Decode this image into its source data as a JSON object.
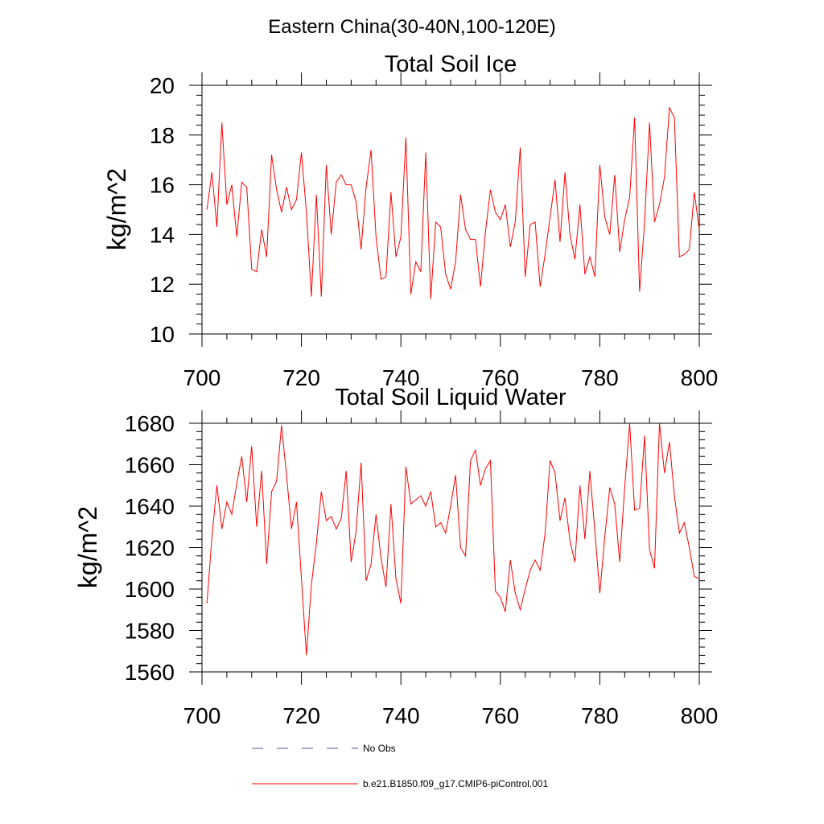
{
  "figure_title": "Eastern China(30-40N,100-120E)",
  "legend": [
    {
      "label": "No Obs",
      "style": "dashed",
      "color": "#55557a"
    },
    {
      "label": "b.e21.B1850.f09_g17.CMIP6-piControl.001",
      "style": "solid",
      "color": "#ff0000"
    }
  ],
  "chart_data": [
    {
      "type": "line",
      "title": "Total Soil Ice",
      "xlabel": "",
      "ylabel": "kg/m^2",
      "xlim": [
        700,
        800
      ],
      "ylim": [
        10,
        20
      ],
      "xticks": [
        700,
        720,
        740,
        760,
        780,
        800
      ],
      "xtick_labels": [
        "700",
        "720",
        "740",
        "760",
        "780",
        "800"
      ],
      "yticks": [
        10,
        12,
        14,
        16,
        18,
        20
      ],
      "ytick_labels": [
        "10",
        "12",
        "14",
        "16",
        "18",
        "20"
      ],
      "series": [
        {
          "name": "b.e21.B1850.f09_g17.CMIP6-piControl.001",
          "color": "#ff0000",
          "x_start": 701,
          "values": [
            15.0,
            16.5,
            14.3,
            18.5,
            15.2,
            16.0,
            13.9,
            16.1,
            15.9,
            12.6,
            12.5,
            14.2,
            13.1,
            17.2,
            15.8,
            14.9,
            15.9,
            15.0,
            15.4,
            17.3,
            14.9,
            11.5,
            15.6,
            11.5,
            16.8,
            14.0,
            16.1,
            16.4,
            16.0,
            16.0,
            15.3,
            13.4,
            15.9,
            17.4,
            13.9,
            12.2,
            12.3,
            15.7,
            13.1,
            13.9,
            17.9,
            11.6,
            12.9,
            12.5,
            17.3,
            11.4,
            14.5,
            14.3,
            12.4,
            11.8,
            12.9,
            15.6,
            14.2,
            13.8,
            13.8,
            11.9,
            14.1,
            15.8,
            14.9,
            14.6,
            15.2,
            13.5,
            14.5,
            17.5,
            12.3,
            14.4,
            14.5,
            11.9,
            13.2,
            14.7,
            16.2,
            13.7,
            16.5,
            14.0,
            13.0,
            15.2,
            12.4,
            13.1,
            12.3,
            16.8,
            14.7,
            14.0,
            16.4,
            13.3,
            14.6,
            15.5,
            18.7,
            11.7,
            14.5,
            18.5,
            14.5,
            15.2,
            16.3,
            19.1,
            18.7,
            13.1,
            13.2,
            13.4,
            15.7,
            14.2
          ]
        }
      ]
    },
    {
      "type": "line",
      "title": "Total Soil Liquid Water",
      "xlabel": "",
      "ylabel": "kg/m^2",
      "xlim": [
        700,
        800
      ],
      "ylim": [
        1560,
        1680
      ],
      "xticks": [
        700,
        720,
        740,
        760,
        780,
        800
      ],
      "xtick_labels": [
        "700",
        "720",
        "740",
        "760",
        "780",
        "800"
      ],
      "yticks": [
        1560,
        1580,
        1600,
        1620,
        1640,
        1660,
        1680
      ],
      "ytick_labels": [
        "1560",
        "1580",
        "1600",
        "1620",
        "1640",
        "1660",
        "1680"
      ],
      "series": [
        {
          "name": "b.e21.B1850.f09_g17.CMIP6-piControl.001",
          "color": "#ff0000",
          "x_start": 701,
          "values": [
            1593,
            1625,
            1650,
            1629,
            1642,
            1636,
            1651,
            1664,
            1642,
            1669,
            1630,
            1657,
            1612,
            1647,
            1652,
            1679,
            1655,
            1629,
            1642,
            1605,
            1568,
            1602,
            1622,
            1647,
            1633,
            1635,
            1629,
            1634,
            1657,
            1613,
            1628,
            1661,
            1604,
            1612,
            1636,
            1615,
            1601,
            1641,
            1605,
            1593,
            1659,
            1641,
            1643,
            1645,
            1640,
            1647,
            1630,
            1632,
            1627,
            1640,
            1655,
            1620,
            1616,
            1662,
            1667,
            1650,
            1658,
            1662,
            1599,
            1596,
            1589,
            1614,
            1598,
            1590,
            1600,
            1609,
            1614,
            1609,
            1627,
            1662,
            1656,
            1633,
            1644,
            1623,
            1613,
            1650,
            1624,
            1657,
            1628,
            1598,
            1625,
            1649,
            1641,
            1613,
            1649,
            1680,
            1638,
            1639,
            1674,
            1619,
            1610,
            1680,
            1656,
            1671,
            1645,
            1627,
            1632,
            1620,
            1606,
            1605
          ]
        }
      ]
    }
  ]
}
